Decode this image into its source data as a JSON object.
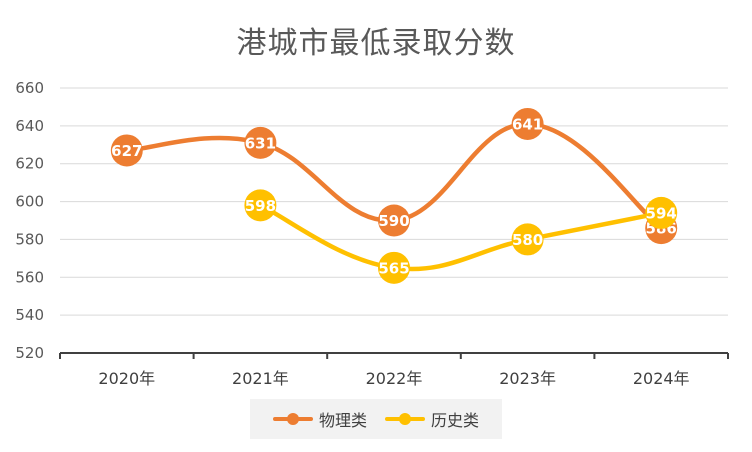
{
  "chart_data": {
    "type": "line",
    "title": "港城市最低录取分数",
    "categories": [
      "2020年",
      "2021年",
      "2022年",
      "2023年",
      "2024年"
    ],
    "ylim": [
      520,
      660
    ],
    "yticks": [
      520,
      540,
      560,
      580,
      600,
      620,
      640,
      660
    ],
    "grid": true,
    "smooth": true,
    "legend_position": "bottom",
    "series": [
      {
        "name": "物理类",
        "color": "#ED7D31",
        "values": [
          627,
          631,
          590,
          641,
          586
        ]
      },
      {
        "name": "历史类",
        "color": "#FFC000",
        "values": [
          null,
          598,
          565,
          580,
          594
        ]
      }
    ]
  }
}
